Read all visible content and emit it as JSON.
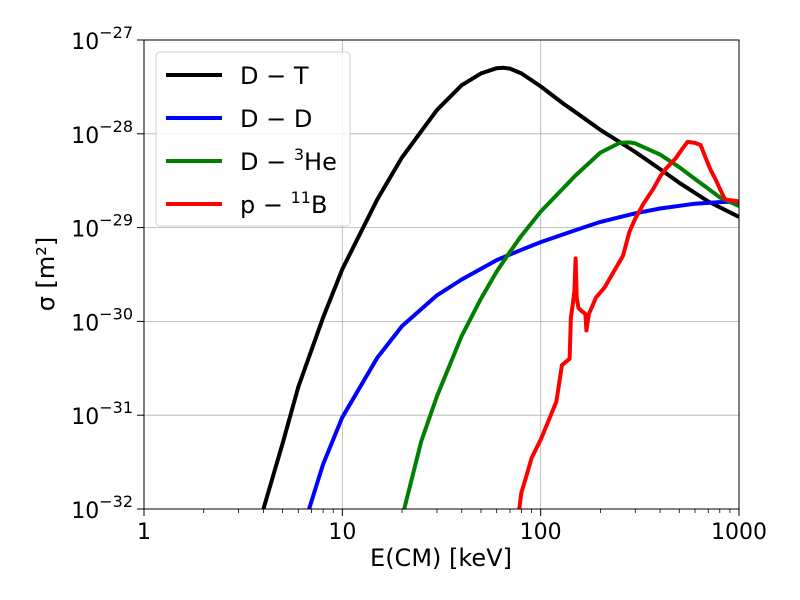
{
  "chart_data": {
    "type": "line",
    "title": "",
    "xlabel": "E(CM) [keV]",
    "ylabel": "σ [m²]",
    "x_scale": "log",
    "y_scale": "log",
    "xlim": [
      1,
      1000
    ],
    "ylim": [
      1e-32,
      1e-27
    ],
    "grid": true,
    "legend_position": "top-left",
    "x_tick_labels": [
      {
        "value": 1,
        "label": "1"
      },
      {
        "value": 10,
        "label": "10"
      },
      {
        "value": 100,
        "label": "100"
      },
      {
        "value": 1000,
        "label": "1000"
      }
    ],
    "y_tick_labels": [
      {
        "value": 1e-32,
        "base": "10",
        "exp": "−32"
      },
      {
        "value": 1e-31,
        "base": "10",
        "exp": "−31"
      },
      {
        "value": 1e-30,
        "base": "10",
        "exp": "−30"
      },
      {
        "value": 1e-29,
        "base": "10",
        "exp": "−29"
      },
      {
        "value": 1e-28,
        "base": "10",
        "exp": "−28"
      },
      {
        "value": 1e-27,
        "base": "10",
        "exp": "−27"
      }
    ],
    "series": [
      {
        "name": "D − T",
        "legend": {
          "base": "D − T",
          "sup": "",
          "tail": ""
        },
        "color": "#000000",
        "points": [
          [
            4.0,
            1e-32
          ],
          [
            5,
            5e-32
          ],
          [
            6,
            2e-31
          ],
          [
            8,
            1.1e-30
          ],
          [
            10,
            3.6e-30
          ],
          [
            15,
            2e-29
          ],
          [
            20,
            5.6e-29
          ],
          [
            30,
            1.8e-28
          ],
          [
            40,
            3.3e-28
          ],
          [
            50,
            4.4e-28
          ],
          [
            60,
            5e-28
          ],
          [
            65,
            5.05e-28
          ],
          [
            70,
            4.95e-28
          ],
          [
            80,
            4.4e-28
          ],
          [
            100,
            3.2e-28
          ],
          [
            130,
            2.1e-28
          ],
          [
            150,
            1.7e-28
          ],
          [
            200,
            1.1e-28
          ],
          [
            250,
            8.2e-29
          ],
          [
            300,
            6.4e-29
          ],
          [
            400,
            4.2e-29
          ],
          [
            500,
            3e-29
          ],
          [
            700,
            1.9e-29
          ],
          [
            1000,
            1.3e-29
          ]
        ]
      },
      {
        "name": "D − D",
        "legend": {
          "base": "D − D",
          "sup": "",
          "tail": ""
        },
        "color": "#0000ff",
        "points": [
          [
            6.8,
            1e-32
          ],
          [
            8,
            3e-32
          ],
          [
            10,
            9.5e-32
          ],
          [
            15,
            4.1e-31
          ],
          [
            20,
            8.9e-31
          ],
          [
            30,
            1.9e-30
          ],
          [
            40,
            2.8e-30
          ],
          [
            60,
            4.5e-30
          ],
          [
            80,
            5.8e-30
          ],
          [
            100,
            7e-30
          ],
          [
            150,
            9.4e-30
          ],
          [
            200,
            1.15e-29
          ],
          [
            300,
            1.42e-29
          ],
          [
            400,
            1.6e-29
          ],
          [
            600,
            1.8e-29
          ],
          [
            800,
            1.87e-29
          ],
          [
            1000,
            1.9e-29
          ]
        ]
      },
      {
        "name": "D − ³He",
        "legend": {
          "base": "D − ",
          "sup": "3",
          "tail": "He"
        },
        "color": "#008000",
        "points": [
          [
            20.5,
            1e-32
          ],
          [
            25,
            5.3e-32
          ],
          [
            30,
            1.6e-31
          ],
          [
            40,
            7e-31
          ],
          [
            50,
            1.75e-30
          ],
          [
            60,
            3.4e-30
          ],
          [
            70,
            5.5e-30
          ],
          [
            80,
            8.2e-30
          ],
          [
            100,
            1.48e-29
          ],
          [
            150,
            3.6e-29
          ],
          [
            200,
            6.3e-29
          ],
          [
            250,
            8e-29
          ],
          [
            280,
            8.1e-29
          ],
          [
            300,
            7.9e-29
          ],
          [
            400,
            6e-29
          ],
          [
            500,
            4.4e-29
          ],
          [
            600,
            3.3e-29
          ],
          [
            700,
            2.6e-29
          ],
          [
            800,
            2.1e-29
          ],
          [
            1000,
            1.7e-29
          ]
        ]
      },
      {
        "name": "p − ¹¹B",
        "legend": {
          "base": "p − ",
          "sup": "11",
          "tail": "B"
        },
        "color": "#ff0000",
        "points": [
          [
            78,
            1e-32
          ],
          [
            80,
            1.5e-32
          ],
          [
            85,
            2.3e-32
          ],
          [
            90,
            3.5e-32
          ],
          [
            100,
            5.5e-32
          ],
          [
            110,
            8.9e-32
          ],
          [
            120,
            1.4e-31
          ],
          [
            128,
            3.4e-31
          ],
          [
            140,
            4e-31
          ],
          [
            142,
            1.1e-30
          ],
          [
            145,
            1.5e-30
          ],
          [
            148,
            2.1e-30
          ],
          [
            150,
            4.7e-30
          ],
          [
            152,
            1.8e-30
          ],
          [
            155,
            1.4e-30
          ],
          [
            160,
            1.3e-30
          ],
          [
            168,
            1.2e-30
          ],
          [
            170,
            8e-31
          ],
          [
            175,
            1.2e-30
          ],
          [
            190,
            1.8e-30
          ],
          [
            210,
            2.3e-30
          ],
          [
            230,
            3.2e-30
          ],
          [
            260,
            5e-30
          ],
          [
            280,
            9e-30
          ],
          [
            300,
            1.25e-29
          ],
          [
            330,
            1.8e-29
          ],
          [
            370,
            2.6e-29
          ],
          [
            400,
            3.5e-29
          ],
          [
            430,
            4.3e-29
          ],
          [
            480,
            5.5e-29
          ],
          [
            520,
            7e-29
          ],
          [
            550,
            8.2e-29
          ],
          [
            600,
            8e-29
          ],
          [
            640,
            7.6e-29
          ],
          [
            680,
            5.5e-29
          ],
          [
            720,
            4.1e-29
          ],
          [
            760,
            3.3e-29
          ],
          [
            800,
            2.6e-29
          ],
          [
            850,
            2e-29
          ],
          [
            1000,
            1.9e-29
          ]
        ]
      }
    ]
  }
}
